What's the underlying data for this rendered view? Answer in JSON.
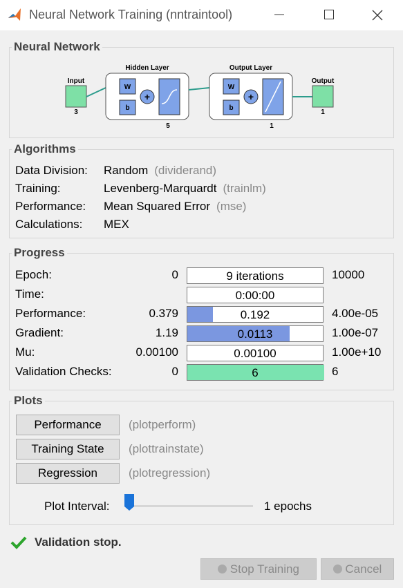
{
  "window": {
    "title": "Neural Network Training (nntraintool)"
  },
  "network": {
    "title": "Neural Network",
    "input": {
      "label": "Input",
      "size": "3"
    },
    "hidden_layer": {
      "label": "Hidden Layer",
      "weight": "W",
      "bias": "b",
      "size": "5"
    },
    "output_layer": {
      "label": "Output Layer",
      "weight": "W",
      "bias": "b",
      "size": "1"
    },
    "output": {
      "label": "Output",
      "size": "1"
    }
  },
  "algorithms": {
    "title": "Algorithms",
    "rows": [
      {
        "label": "Data Division:",
        "value": "Random",
        "function": "(dividerand)"
      },
      {
        "label": "Training:",
        "value": "Levenberg-Marquardt",
        "function": "(trainlm)"
      },
      {
        "label": "Performance:",
        "value": "Mean Squared Error",
        "function": "(mse)"
      },
      {
        "label": "Calculations:",
        "value": "MEX"
      }
    ]
  },
  "progress": {
    "title": "Progress",
    "rows": [
      {
        "label": "Epoch:",
        "start": "0",
        "current": "9 iterations",
        "end": "10000"
      },
      {
        "label": "Time:",
        "current": "0:00:00"
      },
      {
        "label": "Performance:",
        "start": "0.379",
        "current": "0.192",
        "end": "4.00e-05"
      },
      {
        "label": "Gradient:",
        "start": "1.19",
        "current": "0.0113",
        "end": "1.00e-07"
      },
      {
        "label": "Mu:",
        "start": "0.00100",
        "current": "0.00100",
        "end": "1.00e+10"
      },
      {
        "label": "Validation Checks:",
        "start": "0",
        "current": "6",
        "end": "6"
      }
    ]
  },
  "plots": {
    "title": "Plots",
    "buttons": [
      {
        "label": "Performance",
        "function": "(plotperform)"
      },
      {
        "label": "Training State",
        "function": "(plottrainstate)"
      },
      {
        "label": "Regression",
        "function": "(plotregression)"
      }
    ],
    "interval": {
      "label": "Plot Interval:",
      "value": "1 epochs"
    }
  },
  "status": "Validation stop.",
  "actions": {
    "stop": "Stop Training",
    "cancel": "Cancel"
  }
}
